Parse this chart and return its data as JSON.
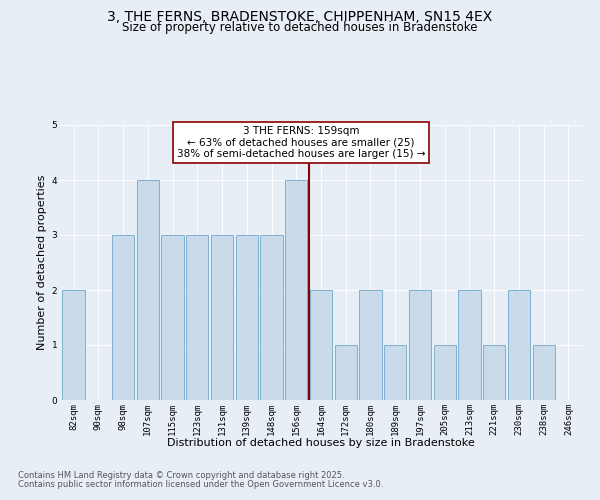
{
  "title": "3, THE FERNS, BRADENSTOKE, CHIPPENHAM, SN15 4EX",
  "subtitle": "Size of property relative to detached houses in Bradenstoke",
  "xlabel": "Distribution of detached houses by size in Bradenstoke",
  "ylabel": "Number of detached properties",
  "footer_line1": "Contains HM Land Registry data © Crown copyright and database right 2025.",
  "footer_line2": "Contains public sector information licensed under the Open Government Licence v3.0.",
  "bins": [
    "82sqm",
    "90sqm",
    "98sqm",
    "107sqm",
    "115sqm",
    "123sqm",
    "131sqm",
    "139sqm",
    "148sqm",
    "156sqm",
    "164sqm",
    "172sqm",
    "180sqm",
    "189sqm",
    "197sqm",
    "205sqm",
    "213sqm",
    "221sqm",
    "230sqm",
    "238sqm",
    "246sqm"
  ],
  "values": [
    2,
    0,
    3,
    4,
    3,
    3,
    3,
    3,
    3,
    4,
    2,
    1,
    2,
    1,
    2,
    1,
    2,
    1,
    2,
    1,
    0
  ],
  "bar_color": "#c9daea",
  "bar_edgecolor": "#6fa8cc",
  "vline_color": "#8b0000",
  "annotation_text": "3 THE FERNS: 159sqm\n← 63% of detached houses are smaller (25)\n38% of semi-detached houses are larger (15) →",
  "annotation_box_facecolor": "#ffffff",
  "annotation_box_edgecolor": "#8b0000",
  "ylim": [
    0,
    5
  ],
  "yticks": [
    0,
    1,
    2,
    3,
    4,
    5
  ],
  "bg_color": "#e8eef5",
  "plot_bg_color": "#e8eef5",
  "title_fontsize": 10,
  "subtitle_fontsize": 8.5,
  "xlabel_fontsize": 8,
  "ylabel_fontsize": 8,
  "tick_fontsize": 6.5,
  "footer_fontsize": 6,
  "annotation_fontsize": 7.5
}
